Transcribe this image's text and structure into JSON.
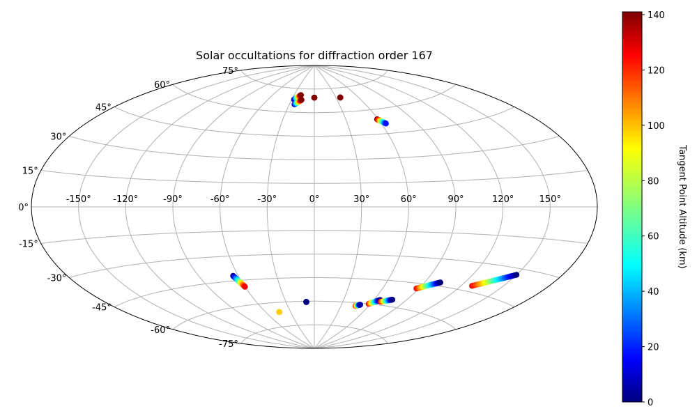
{
  "chart_data": {
    "type": "scatter",
    "projection": "aitoff",
    "title": "Solar occultations for diffraction order 167",
    "x_tick_labels": [
      "-150°",
      "-120°",
      "-90°",
      "-60°",
      "-30°",
      "0°",
      "30°",
      "60°",
      "90°",
      "120°",
      "150°"
    ],
    "y_tick_labels": [
      "-75°",
      "-60°",
      "-45°",
      "-30°",
      "-15°",
      "0°",
      "15°",
      "30°",
      "45°",
      "60°",
      "75°"
    ],
    "grid": true,
    "colorbar": {
      "label": "Tangent Point Altitude (km)",
      "colormap": "jet",
      "range": [
        0,
        141
      ],
      "tick_labels": [
        "0",
        "20",
        "40",
        "60",
        "80",
        "100",
        "120",
        "140"
      ]
    },
    "tracks": [
      {
        "lon_start": -27,
        "lat_start": 68,
        "lon_end": -20,
        "lat_end": 71,
        "alt_start": 0,
        "alt_end": 141
      },
      {
        "lon_start": -24,
        "lat_start": 65,
        "lon_end": -17,
        "lat_end": 68,
        "alt_start": 10,
        "alt_end": 141
      },
      {
        "lon_start": 0,
        "lat_start": 69.5,
        "lon_end": 0,
        "lat_end": 69.5,
        "alt_start": 141,
        "alt_end": 141
      },
      {
        "lon_start": 36,
        "lat_start": 69,
        "lon_end": 36,
        "lat_end": 69,
        "alt_start": 141,
        "alt_end": 141
      },
      {
        "lon_start": 59,
        "lat_start": 54,
        "lon_end": 64,
        "lat_end": 51,
        "alt_start": 141,
        "alt_end": 20
      },
      {
        "lon_start": -64,
        "lat_start": -42,
        "lon_end": -60,
        "lat_end": -49,
        "alt_start": 0,
        "alt_end": 125
      },
      {
        "lon_start": -44,
        "lat_start": -66,
        "lon_end": -44,
        "lat_end": -66,
        "alt_start": 5,
        "alt_end": 95
      },
      {
        "lon_start": -8.5,
        "lat_start": -60.5,
        "lon_end": -8.5,
        "lat_end": -60.5,
        "alt_start": 0,
        "alt_end": 0
      },
      {
        "lon_start": 46,
        "lat_start": -62,
        "lon_end": 50,
        "lat_end": -61,
        "alt_start": 125,
        "alt_end": 5
      },
      {
        "lon_start": 58,
        "lat_start": -60,
        "lon_end": 66,
        "lat_end": -57,
        "alt_start": 125,
        "alt_end": 0
      },
      {
        "lon_start": 68,
        "lat_start": -58,
        "lon_end": 77,
        "lat_end": -56,
        "alt_start": 125,
        "alt_end": 0
      },
      {
        "lon_start": 88,
        "lat_start": -48,
        "lon_end": 102,
        "lat_end": -43,
        "alt_start": 125,
        "alt_end": 0
      },
      {
        "lon_start": 128,
        "lat_start": -42,
        "lon_end": 150,
        "lat_end": -33,
        "alt_start": 125,
        "alt_end": 0
      }
    ]
  }
}
